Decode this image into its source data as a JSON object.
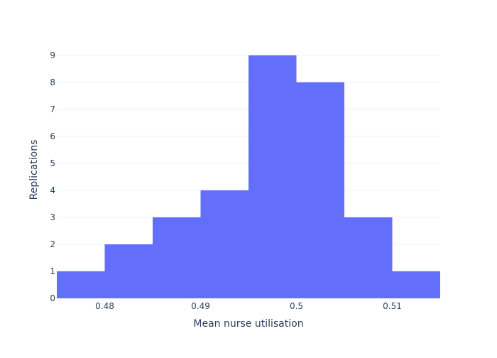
{
  "chart_data": {
    "type": "bar",
    "subtype": "histogram",
    "xlabel": "Mean nurse utilisation",
    "ylabel": "Replications",
    "bin_edges": [
      0.475,
      0.48,
      0.485,
      0.49,
      0.495,
      0.5,
      0.505,
      0.51,
      0.515
    ],
    "values": [
      1,
      2,
      3,
      4,
      9,
      8,
      3,
      1
    ],
    "xlim": [
      0.475,
      0.515
    ],
    "ylim": [
      0,
      9.47
    ],
    "x_ticks": [
      0.48,
      0.49,
      0.5,
      0.51
    ],
    "x_tick_labels": [
      "0.48",
      "0.49",
      "0.5",
      "0.51"
    ],
    "y_ticks": [
      0,
      1,
      2,
      3,
      4,
      5,
      6,
      7,
      8,
      9
    ],
    "y_tick_labels": [
      "0",
      "1",
      "2",
      "3",
      "4",
      "5",
      "6",
      "7",
      "8",
      "9"
    ],
    "grid": "horizontal",
    "colors": {
      "bar": "#636efa",
      "grid": "#ebf0f8",
      "text": "#2a3f5f",
      "background": "#ffffff"
    }
  }
}
